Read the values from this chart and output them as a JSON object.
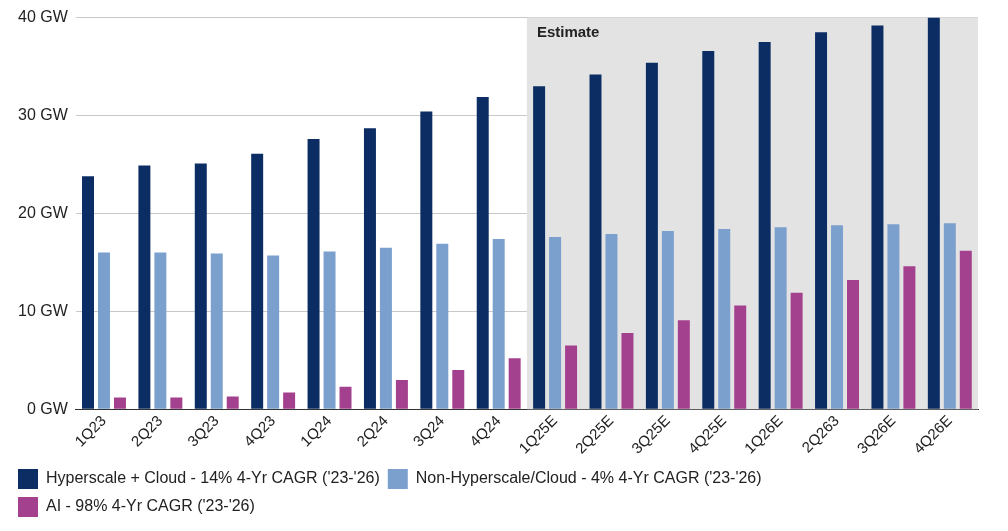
{
  "chart_data": {
    "type": "bar",
    "categories": [
      "1Q23",
      "2Q23",
      "3Q23",
      "4Q23",
      "1Q24",
      "2Q24",
      "3Q24",
      "4Q24",
      "1Q25E",
      "2Q25E",
      "3Q25E",
      "4Q25E",
      "1Q26E",
      "2Q263",
      "3Q26E",
      "4Q26E"
    ],
    "series": [
      {
        "name": "Hyperscale + Cloud - 14% 4-Yr CAGR ('23-'26)",
        "color": "#0b2d63",
        "values": [
          23.8,
          24.9,
          25.1,
          26.1,
          27.6,
          28.7,
          30.4,
          31.9,
          33.0,
          34.2,
          35.4,
          36.6,
          37.5,
          38.5,
          39.2,
          40.0
        ]
      },
      {
        "name": "Non-Hyperscale/Cloud - 4% 4-Yr CAGR ('23-'26)",
        "color": "#7ba0cd",
        "values": [
          16.0,
          16.0,
          15.9,
          15.7,
          16.1,
          16.5,
          16.9,
          17.4,
          17.6,
          17.9,
          18.2,
          18.4,
          18.6,
          18.8,
          18.9,
          19.0
        ]
      },
      {
        "name": "AI - 98% 4-Yr CAGR ('23-'26)",
        "color": "#a4418e",
        "values": [
          1.2,
          1.2,
          1.3,
          1.7,
          2.3,
          3.0,
          4.0,
          5.2,
          6.5,
          7.8,
          9.1,
          10.6,
          11.9,
          13.2,
          14.6,
          16.2
        ]
      }
    ],
    "ylim": [
      0,
      40
    ],
    "yticks": [
      {
        "value": 0,
        "label": "0 GW"
      },
      {
        "value": 10,
        "label": "10 GW"
      },
      {
        "value": 20,
        "label": "20 GW"
      },
      {
        "value": 30,
        "label": "30 GW"
      },
      {
        "value": 40,
        "label": "40 GW"
      }
    ],
    "bands": [
      {
        "axis": "x",
        "from": "1Q25E",
        "to": "4Q26E",
        "label": "Estimate",
        "color": "#e3e3e3"
      }
    ],
    "grid": "y",
    "legend": "bottom"
  }
}
